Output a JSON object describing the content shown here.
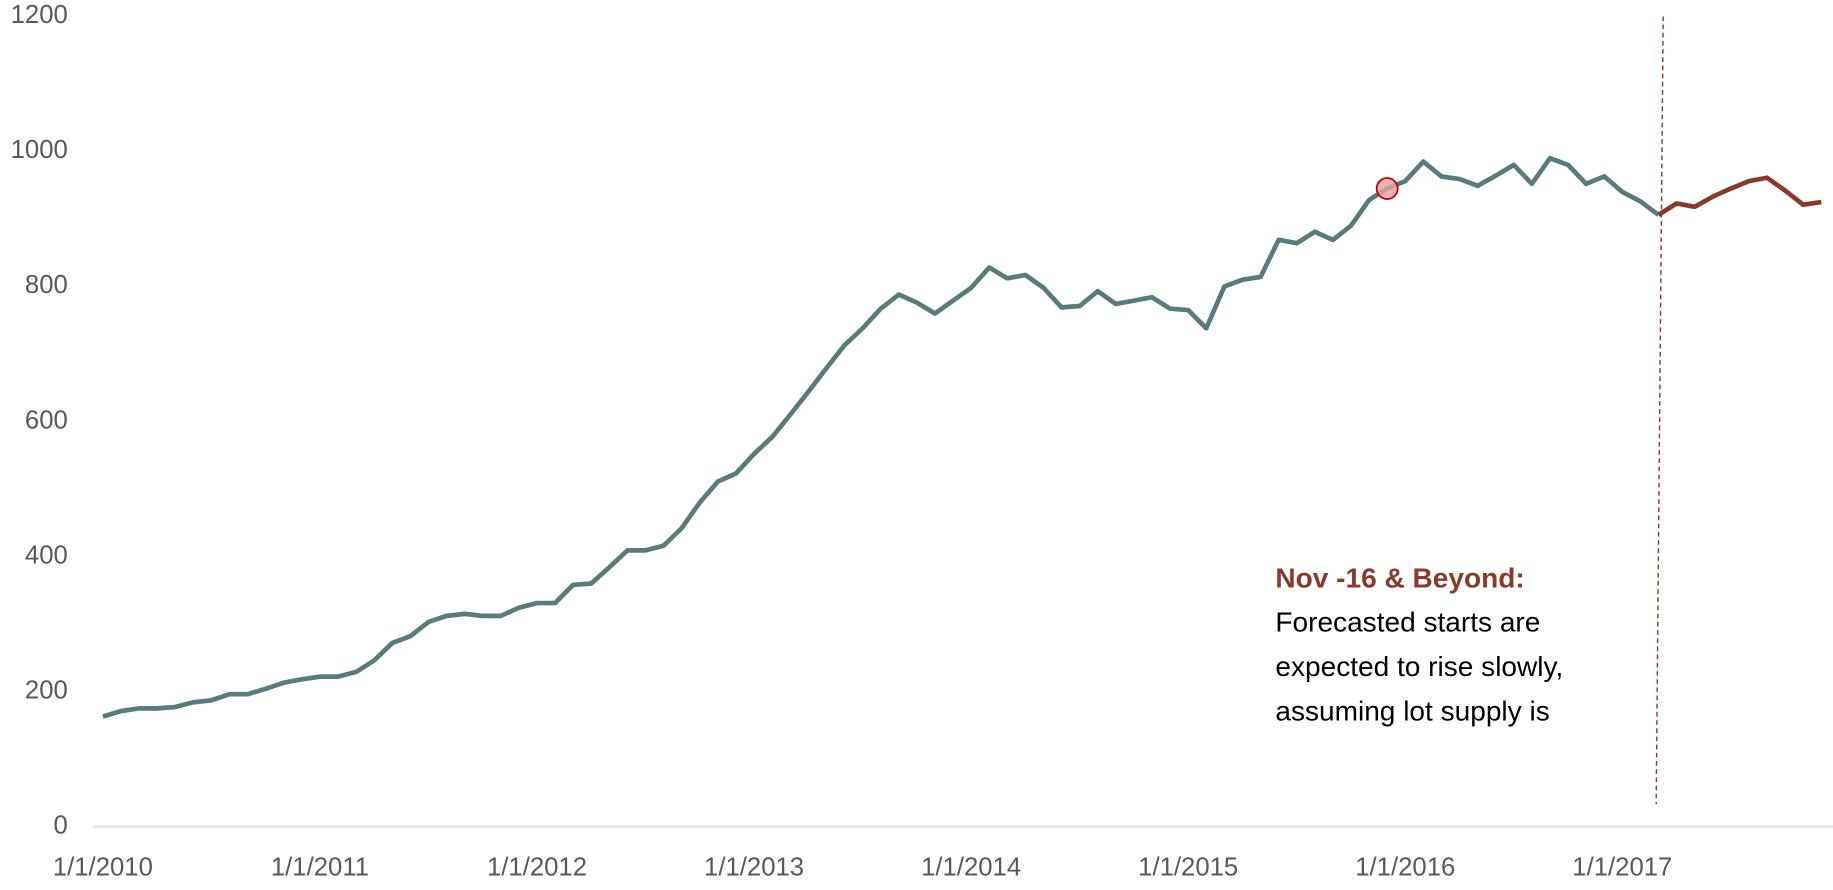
{
  "chart_data": {
    "type": "line",
    "x": [
      "2010-01",
      "2010-02",
      "2010-03",
      "2010-04",
      "2010-05",
      "2010-06",
      "2010-07",
      "2010-08",
      "2010-09",
      "2010-10",
      "2010-11",
      "2010-12",
      "2011-01",
      "2011-02",
      "2011-03",
      "2011-04",
      "2011-05",
      "2011-06",
      "2011-07",
      "2011-08",
      "2011-09",
      "2011-10",
      "2011-11",
      "2011-12",
      "2012-01",
      "2012-02",
      "2012-03",
      "2012-04",
      "2012-05",
      "2012-06",
      "2012-07",
      "2012-08",
      "2012-09",
      "2012-10",
      "2012-11",
      "2012-12",
      "2013-01",
      "2013-02",
      "2013-03",
      "2013-04",
      "2013-05",
      "2013-06",
      "2013-07",
      "2013-08",
      "2013-09",
      "2013-10",
      "2013-11",
      "2013-12",
      "2014-01",
      "2014-02",
      "2014-03",
      "2014-04",
      "2014-05",
      "2014-06",
      "2014-07",
      "2014-08",
      "2014-09",
      "2014-10",
      "2014-11",
      "2014-12",
      "2015-01",
      "2015-02",
      "2015-03",
      "2015-04",
      "2015-05",
      "2015-06",
      "2015-07",
      "2015-08",
      "2015-09",
      "2015-10",
      "2015-11",
      "2015-12",
      "2016-01",
      "2016-02",
      "2016-03",
      "2016-04",
      "2016-05",
      "2016-06",
      "2016-07",
      "2016-08",
      "2016-09",
      "2016-10",
      "2016-11",
      "2016-12",
      "2017-01",
      "2017-02",
      "2017-03",
      "2017-04",
      "2017-05",
      "2017-06",
      "2017-07",
      "2017-08",
      "2017-09",
      "2017-10",
      "2017-11",
      "2017-12"
    ],
    "series": [
      {
        "color": "#587b7b",
        "values": [
          163,
          171,
          175,
          175,
          177,
          184,
          187,
          196,
          196,
          204,
          213,
          218,
          222,
          222,
          229,
          246,
          272,
          282,
          303,
          312,
          315,
          312,
          312,
          324,
          331,
          331,
          358,
          360,
          384,
          409,
          409,
          416,
          442,
          480,
          511,
          523,
          552,
          577,
          610,
          644,
          679,
          713,
          738,
          767,
          788,
          776,
          760,
          779,
          798,
          828,
          812,
          817,
          798,
          769,
          771,
          793,
          774,
          779,
          784,
          767,
          765,
          738,
          800,
          810,
          814,
          869,
          864,
          881,
          869,
          890,
          928,
          945,
          956,
          985,
          963,
          959,
          949,
          964,
          980,
          952,
          990,
          980,
          952,
          963,
          940,
          926,
          906,
          null,
          null,
          null,
          null,
          null,
          null,
          null,
          null,
          null
        ]
      },
      {
        "color": "#8b3a2a",
        "values": [
          null,
          null,
          null,
          null,
          null,
          null,
          null,
          null,
          null,
          null,
          null,
          null,
          null,
          null,
          null,
          null,
          null,
          null,
          null,
          null,
          null,
          null,
          null,
          null,
          null,
          null,
          null,
          null,
          null,
          null,
          null,
          null,
          null,
          null,
          null,
          null,
          null,
          null,
          null,
          null,
          null,
          null,
          null,
          null,
          null,
          null,
          null,
          null,
          null,
          null,
          null,
          null,
          null,
          null,
          null,
          null,
          null,
          null,
          null,
          null,
          null,
          null,
          null,
          null,
          null,
          null,
          null,
          null,
          null,
          null,
          null,
          null,
          null,
          null,
          null,
          null,
          null,
          null,
          null,
          null,
          null,
          null,
          null,
          null,
          null,
          null,
          906,
          923,
          918,
          933,
          945,
          956,
          961,
          942,
          921,
          925
        ]
      }
    ],
    "highlight": {
      "x": "2015-12",
      "value": 945
    },
    "forecast_start": "2017-03",
    "xlim": [
      "2010-01",
      "2017-12"
    ],
    "xticks": [
      {
        "value": "2010-01",
        "label": "1/1/2010"
      },
      {
        "value": "2011-01",
        "label": "1/1/2011"
      },
      {
        "value": "2012-01",
        "label": "1/1/2012"
      },
      {
        "value": "2013-01",
        "label": "1/1/2013"
      },
      {
        "value": "2014-01",
        "label": "1/1/2014"
      },
      {
        "value": "2015-01",
        "label": "1/1/2015"
      },
      {
        "value": "2016-01",
        "label": "1/1/2016"
      },
      {
        "value": "2017-01",
        "label": "1/1/2017"
      }
    ],
    "ylim": [
      0,
      1200
    ],
    "yticks": [
      0,
      200,
      400,
      600,
      800,
      1000,
      1200
    ],
    "annotation": {
      "title": "Nov -16 & Beyond:",
      "lines": [
        "Forecasted starts are",
        "expected to rise slowly,",
        "assuming lot supply is"
      ]
    }
  }
}
